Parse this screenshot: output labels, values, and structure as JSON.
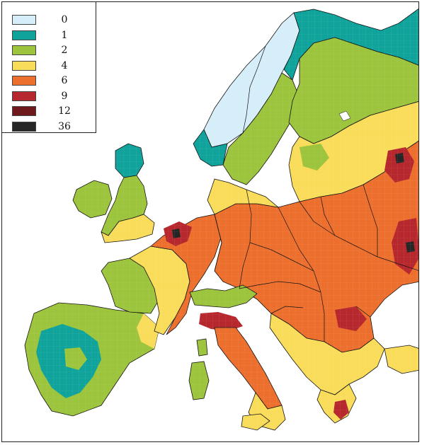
{
  "legend": {
    "items": [
      {
        "label": "0",
        "color": "#d6eefa"
      },
      {
        "label": "1",
        "color": "#0fa39b"
      },
      {
        "label": "2",
        "color": "#9cc43c"
      },
      {
        "label": "4",
        "color": "#f9dc5a"
      },
      {
        "label": "6",
        "color": "#ec6f2d"
      },
      {
        "label": "9",
        "color": "#b6282d"
      },
      {
        "label": "12",
        "color": "#6e1a1c"
      },
      {
        "label": "36",
        "color": "#262626"
      }
    ]
  },
  "colors": {
    "sea": "#ffffff",
    "border": "#111111",
    "frame": "#222222"
  }
}
